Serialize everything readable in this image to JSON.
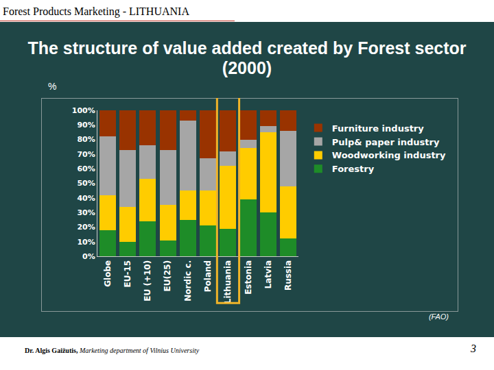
{
  "header": "Forest Products Marketing - LITHUANIA",
  "footer": {
    "author": "Dr. Algis Gaižutis,",
    "affiliation": "Marketing department of Vilnius University",
    "page": "3"
  },
  "chart_data": {
    "type": "bar",
    "title": "The structure of value added created by Forest sector (2000)",
    "y_label": "%",
    "source": "(FAO)",
    "stacked": true,
    "grid": false,
    "legend": "right",
    "categories": [
      "Globe",
      "EU-15",
      "EU (+10)",
      "EU(25)",
      "Nordic c.",
      "Poland",
      "Lithuania",
      "Estonia",
      "Latvia",
      "Russia"
    ],
    "series": [
      {
        "name": "Forestry",
        "color": "#1e8c28",
        "values": [
          18,
          10,
          24,
          11,
          25,
          21,
          19,
          39,
          30,
          12
        ]
      },
      {
        "name": "Woodworking industry",
        "color": "#ffcc00",
        "values": [
          24,
          24,
          29,
          24,
          20,
          24,
          43,
          35,
          55,
          36
        ]
      },
      {
        "name": "Pulp& paper industry",
        "color": "#a6a6a6",
        "values": [
          40,
          39,
          23,
          38,
          48,
          22,
          10,
          6,
          4,
          38
        ]
      },
      {
        "name": "Furniture industry",
        "color": "#993300",
        "values": [
          18,
          27,
          24,
          27,
          7,
          33,
          28,
          20,
          11,
          14
        ]
      }
    ],
    "ylim": [
      0,
      100
    ],
    "yticks": [
      {
        "value": 0,
        "label": "0%"
      },
      {
        "value": 10,
        "label": "10%"
      },
      {
        "value": 20,
        "label": "20%"
      },
      {
        "value": 30,
        "label": "30%"
      },
      {
        "value": 40,
        "label": "40%"
      },
      {
        "value": 50,
        "label": "50%"
      },
      {
        "value": 60,
        "label": "60%"
      },
      {
        "value": 70,
        "label": "70%"
      },
      {
        "value": 80,
        "label": "80%"
      },
      {
        "value": 90,
        "label": "90%"
      },
      {
        "value": 100,
        "label": "100%"
      }
    ]
  }
}
